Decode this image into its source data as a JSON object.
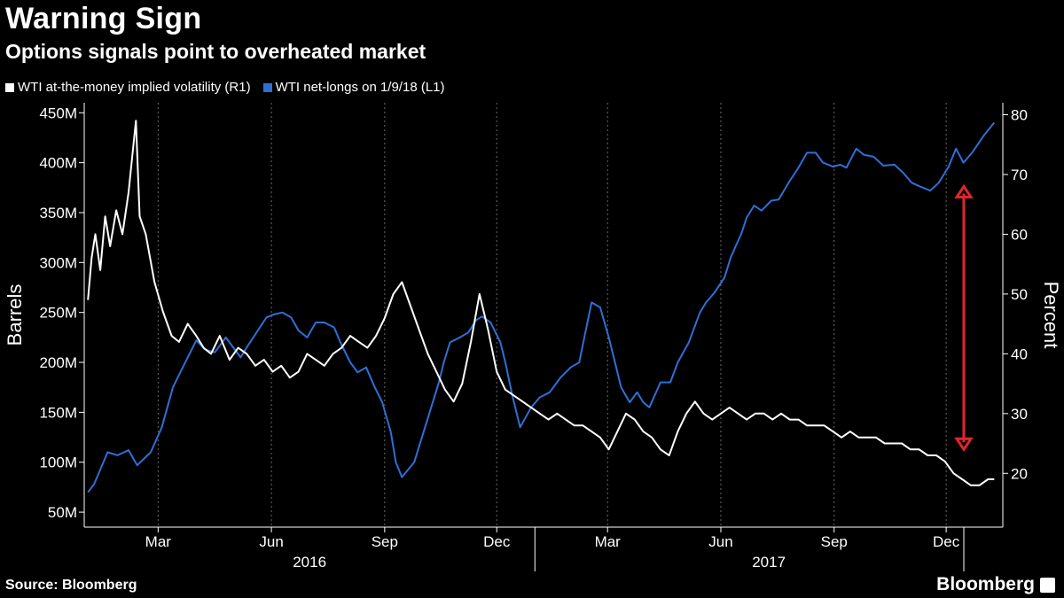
{
  "header": {
    "title": "Warning Sign",
    "subtitle": "Options signals point to overheated market"
  },
  "footer": {
    "source": "Source: Bloomberg",
    "brand": "Bloomberg"
  },
  "colors": {
    "background": "#000000",
    "white_series": "#ffffff",
    "blue_series": "#2f6fd6",
    "annotation_arrow": "#e0262b",
    "grid": "#6a6a6a"
  },
  "chart_data": {
    "type": "line",
    "title": "Warning Sign",
    "subtitle": "Options signals point to overheated market",
    "ylabel_left": "Barrels",
    "ylabel_right": "Percent",
    "left_axis": {
      "ticks": [
        "50M",
        "100M",
        "150M",
        "200M",
        "250M",
        "300M",
        "350M",
        "400M",
        "450M"
      ],
      "ylim": [
        35,
        460
      ]
    },
    "right_axis": {
      "ticks": [
        "20",
        "30",
        "40",
        "50",
        "60",
        "70",
        "80"
      ],
      "ylim": [
        11,
        82
      ]
    },
    "x_ticks": [
      "Mar",
      "Jun",
      "Sep",
      "Dec",
      "Mar",
      "Jun",
      "Sep",
      "Dec"
    ],
    "x_groups": [
      "2016",
      "2017"
    ],
    "grid": true,
    "legend_position": "top-left",
    "series": [
      {
        "name": "WTI net-longs on 1/9/18 (L1)",
        "axis": "left",
        "color": "#2f6fd6",
        "points": [
          [
            "2016-01-04",
            70
          ],
          [
            "2016-01-09",
            78
          ],
          [
            "2016-01-20",
            110
          ],
          [
            "2016-01-28",
            107
          ],
          [
            "2016-02-06",
            112
          ],
          [
            "2016-02-13",
            97
          ],
          [
            "2016-02-24",
            110
          ],
          [
            "2016-03-04",
            135
          ],
          [
            "2016-03-13",
            175
          ],
          [
            "2016-03-25",
            205
          ],
          [
            "2016-04-01",
            222
          ],
          [
            "2016-04-08",
            213
          ],
          [
            "2016-04-16",
            210
          ],
          [
            "2016-04-25",
            225
          ],
          [
            "2016-05-01",
            215
          ],
          [
            "2016-05-07",
            205
          ],
          [
            "2016-05-12",
            215
          ],
          [
            "2016-05-20",
            230
          ],
          [
            "2016-05-28",
            245
          ],
          [
            "2016-06-03",
            248
          ],
          [
            "2016-06-10",
            250
          ],
          [
            "2016-06-17",
            245
          ],
          [
            "2016-06-23",
            232
          ],
          [
            "2016-06-30",
            225
          ],
          [
            "2016-07-07",
            240
          ],
          [
            "2016-07-14",
            240
          ],
          [
            "2016-07-22",
            235
          ],
          [
            "2016-07-27",
            220
          ],
          [
            "2016-08-04",
            200
          ],
          [
            "2016-08-10",
            190
          ],
          [
            "2016-08-17",
            195
          ],
          [
            "2016-08-24",
            175
          ],
          [
            "2016-08-30",
            160
          ],
          [
            "2016-09-06",
            130
          ],
          [
            "2016-09-10",
            100
          ],
          [
            "2016-09-15",
            85
          ],
          [
            "2016-09-25",
            100
          ],
          [
            "2016-10-05",
            140
          ],
          [
            "2016-10-15",
            180
          ],
          [
            "2016-10-19",
            200
          ],
          [
            "2016-10-24",
            220
          ],
          [
            "2016-11-01",
            225
          ],
          [
            "2016-11-08",
            230
          ],
          [
            "2016-11-14",
            242
          ],
          [
            "2016-11-19",
            246
          ],
          [
            "2016-11-26",
            240
          ],
          [
            "2016-12-04",
            220
          ],
          [
            "2016-12-08",
            200
          ],
          [
            "2016-12-14",
            165
          ],
          [
            "2016-12-20",
            135
          ],
          [
            "2016-12-29",
            155
          ],
          [
            "2017-01-05",
            165
          ],
          [
            "2017-01-13",
            170
          ],
          [
            "2017-01-22",
            185
          ],
          [
            "2017-01-30",
            195
          ],
          [
            "2017-02-06",
            200
          ],
          [
            "2017-02-11",
            230
          ],
          [
            "2017-02-16",
            260
          ],
          [
            "2017-02-23",
            255
          ],
          [
            "2017-03-02",
            225
          ],
          [
            "2017-03-06",
            205
          ],
          [
            "2017-03-12",
            175
          ],
          [
            "2017-03-19",
            160
          ],
          [
            "2017-03-25",
            170
          ],
          [
            "2017-03-30",
            160
          ],
          [
            "2017-04-04",
            155
          ],
          [
            "2017-04-13",
            180
          ],
          [
            "2017-04-21",
            180
          ],
          [
            "2017-04-27",
            200
          ],
          [
            "2017-05-06",
            220
          ],
          [
            "2017-05-15",
            250
          ],
          [
            "2017-05-20",
            260
          ],
          [
            "2017-05-27",
            270
          ],
          [
            "2017-06-04",
            285
          ],
          [
            "2017-06-09",
            305
          ],
          [
            "2017-06-18",
            330
          ],
          [
            "2017-06-22",
            345
          ],
          [
            "2017-06-28",
            357
          ],
          [
            "2017-07-04",
            352
          ],
          [
            "2017-07-12",
            362
          ],
          [
            "2017-07-18",
            363
          ],
          [
            "2017-07-26",
            380
          ],
          [
            "2017-08-03",
            395
          ],
          [
            "2017-08-10",
            410
          ],
          [
            "2017-08-17",
            410
          ],
          [
            "2017-08-23",
            400
          ],
          [
            "2017-08-31",
            396
          ],
          [
            "2017-09-06",
            398
          ],
          [
            "2017-09-11",
            395
          ],
          [
            "2017-09-19",
            414
          ],
          [
            "2017-09-25",
            408
          ],
          [
            "2017-10-03",
            406
          ],
          [
            "2017-10-11",
            397
          ],
          [
            "2017-10-20",
            398
          ],
          [
            "2017-10-27",
            390
          ],
          [
            "2017-11-03",
            380
          ],
          [
            "2017-11-10",
            376
          ],
          [
            "2017-11-18",
            372
          ],
          [
            "2017-11-25",
            380
          ],
          [
            "2017-12-03",
            396
          ],
          [
            "2017-12-09",
            414
          ],
          [
            "2017-12-15",
            400
          ],
          [
            "2017-12-22",
            410
          ],
          [
            "2018-01-01",
            428
          ],
          [
            "2018-01-09",
            440
          ]
        ]
      },
      {
        "name": "WTI at-the-money implied volatility (R1)",
        "axis": "right",
        "color": "#ffffff",
        "points": [
          [
            "2016-01-04",
            49
          ],
          [
            "2016-01-07",
            56
          ],
          [
            "2016-01-10",
            60
          ],
          [
            "2016-01-14",
            54
          ],
          [
            "2016-01-18",
            63
          ],
          [
            "2016-01-22",
            58
          ],
          [
            "2016-01-27",
            64
          ],
          [
            "2016-02-01",
            60
          ],
          [
            "2016-02-06",
            67
          ],
          [
            "2016-02-12",
            79
          ],
          [
            "2016-02-15",
            63
          ],
          [
            "2016-02-20",
            60
          ],
          [
            "2016-02-27",
            52
          ],
          [
            "2016-03-05",
            47
          ],
          [
            "2016-03-12",
            43
          ],
          [
            "2016-03-18",
            42
          ],
          [
            "2016-03-25",
            45
          ],
          [
            "2016-04-01",
            43
          ],
          [
            "2016-04-07",
            41
          ],
          [
            "2016-04-13",
            40
          ],
          [
            "2016-04-20",
            43
          ],
          [
            "2016-04-28",
            39
          ],
          [
            "2016-05-05",
            41
          ],
          [
            "2016-05-12",
            40
          ],
          [
            "2016-05-19",
            38
          ],
          [
            "2016-05-26",
            39
          ],
          [
            "2016-06-02",
            37
          ],
          [
            "2016-06-09",
            38
          ],
          [
            "2016-06-16",
            36
          ],
          [
            "2016-06-23",
            37
          ],
          [
            "2016-06-30",
            40
          ],
          [
            "2016-07-07",
            39
          ],
          [
            "2016-07-14",
            38
          ],
          [
            "2016-07-21",
            40
          ],
          [
            "2016-07-28",
            41
          ],
          [
            "2016-08-04",
            43
          ],
          [
            "2016-08-11",
            42
          ],
          [
            "2016-08-18",
            41
          ],
          [
            "2016-08-25",
            43
          ],
          [
            "2016-09-01",
            46
          ],
          [
            "2016-09-08",
            50
          ],
          [
            "2016-09-15",
            52
          ],
          [
            "2016-09-22",
            48
          ],
          [
            "2016-09-29",
            44
          ],
          [
            "2016-10-06",
            40
          ],
          [
            "2016-10-13",
            37
          ],
          [
            "2016-10-20",
            34
          ],
          [
            "2016-10-27",
            32
          ],
          [
            "2016-11-03",
            35
          ],
          [
            "2016-11-10",
            42
          ],
          [
            "2016-11-17",
            50
          ],
          [
            "2016-11-24",
            44
          ],
          [
            "2016-12-01",
            37
          ],
          [
            "2016-12-08",
            34
          ],
          [
            "2016-12-15",
            33
          ],
          [
            "2016-12-22",
            32
          ],
          [
            "2016-12-29",
            31
          ],
          [
            "2017-01-05",
            30
          ],
          [
            "2017-01-12",
            29
          ],
          [
            "2017-01-19",
            30
          ],
          [
            "2017-01-26",
            29
          ],
          [
            "2017-02-02",
            28
          ],
          [
            "2017-02-09",
            28
          ],
          [
            "2017-02-16",
            27
          ],
          [
            "2017-02-23",
            26
          ],
          [
            "2017-03-02",
            24
          ],
          [
            "2017-03-09",
            27
          ],
          [
            "2017-03-16",
            30
          ],
          [
            "2017-03-23",
            29
          ],
          [
            "2017-03-30",
            27
          ],
          [
            "2017-04-06",
            26
          ],
          [
            "2017-04-13",
            24
          ],
          [
            "2017-04-20",
            23
          ],
          [
            "2017-04-27",
            27
          ],
          [
            "2017-05-04",
            30
          ],
          [
            "2017-05-11",
            32
          ],
          [
            "2017-05-18",
            30
          ],
          [
            "2017-05-25",
            29
          ],
          [
            "2017-06-01",
            30
          ],
          [
            "2017-06-08",
            31
          ],
          [
            "2017-06-15",
            30
          ],
          [
            "2017-06-22",
            29
          ],
          [
            "2017-06-29",
            30
          ],
          [
            "2017-07-06",
            30
          ],
          [
            "2017-07-13",
            29
          ],
          [
            "2017-07-20",
            30
          ],
          [
            "2017-07-27",
            29
          ],
          [
            "2017-08-03",
            29
          ],
          [
            "2017-08-10",
            28
          ],
          [
            "2017-08-17",
            28
          ],
          [
            "2017-08-24",
            28
          ],
          [
            "2017-08-31",
            27
          ],
          [
            "2017-09-07",
            26
          ],
          [
            "2017-09-14",
            27
          ],
          [
            "2017-09-21",
            26
          ],
          [
            "2017-09-28",
            26
          ],
          [
            "2017-10-05",
            26
          ],
          [
            "2017-10-12",
            25
          ],
          [
            "2017-10-19",
            25
          ],
          [
            "2017-10-26",
            25
          ],
          [
            "2017-11-02",
            24
          ],
          [
            "2017-11-09",
            24
          ],
          [
            "2017-11-16",
            23
          ],
          [
            "2017-11-23",
            23
          ],
          [
            "2017-11-30",
            22
          ],
          [
            "2017-12-07",
            20
          ],
          [
            "2017-12-14",
            19
          ],
          [
            "2017-12-21",
            18
          ],
          [
            "2017-12-28",
            18
          ],
          [
            "2018-01-04",
            19
          ],
          [
            "2018-01-09",
            19
          ]
        ]
      }
    ],
    "annotation": {
      "type": "double-arrow",
      "color": "#e0262b",
      "from_right": 68,
      "to_right": 24
    }
  }
}
